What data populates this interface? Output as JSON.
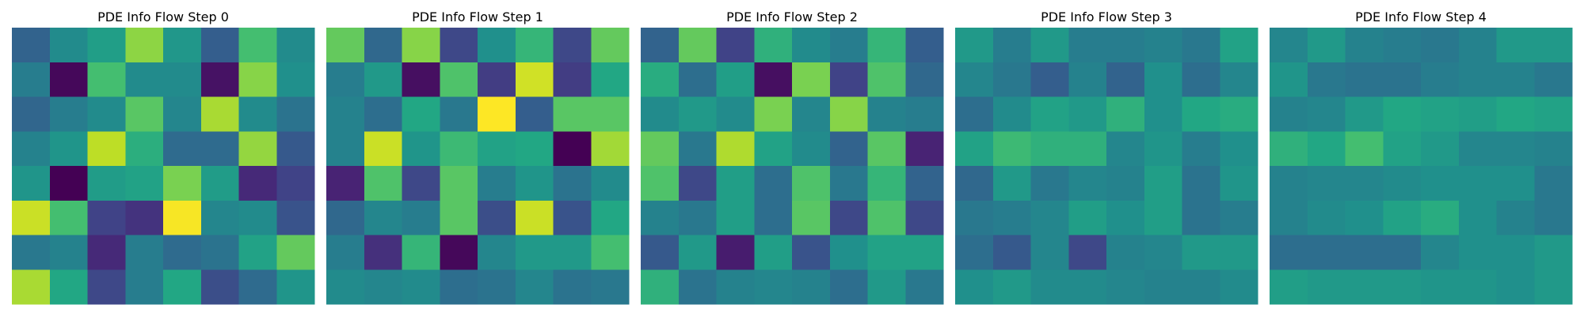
{
  "chart_data": [
    {
      "type": "heatmap",
      "title": "PDE Info Flow Step 0",
      "colormap": "viridis",
      "vmin": 0,
      "vmax": 1,
      "matrix": [
        [
          0.32,
          0.48,
          0.56,
          0.83,
          0.53,
          0.3,
          0.7,
          0.48
        ],
        [
          0.42,
          0.02,
          0.7,
          0.48,
          0.48,
          0.05,
          0.82,
          0.5
        ],
        [
          0.33,
          0.42,
          0.48,
          0.74,
          0.46,
          0.87,
          0.48,
          0.38
        ],
        [
          0.44,
          0.52,
          0.9,
          0.63,
          0.35,
          0.35,
          0.84,
          0.28
        ],
        [
          0.52,
          0.0,
          0.55,
          0.58,
          0.8,
          0.55,
          0.12,
          0.2
        ],
        [
          0.92,
          0.7,
          0.2,
          0.15,
          0.99,
          0.46,
          0.48,
          0.26
        ],
        [
          0.4,
          0.44,
          0.12,
          0.42,
          0.35,
          0.38,
          0.58,
          0.76
        ],
        [
          0.87,
          0.6,
          0.22,
          0.42,
          0.6,
          0.24,
          0.35,
          0.52
        ]
      ]
    },
    {
      "type": "heatmap",
      "title": "PDE Info Flow Step 1",
      "colormap": "viridis",
      "vmin": 0,
      "vmax": 1,
      "matrix": [
        [
          0.76,
          0.34,
          0.82,
          0.22,
          0.5,
          0.66,
          0.22,
          0.76
        ],
        [
          0.42,
          0.54,
          0.04,
          0.72,
          0.18,
          0.93,
          0.18,
          0.6
        ],
        [
          0.44,
          0.36,
          0.6,
          0.4,
          1.0,
          0.3,
          0.74,
          0.74
        ],
        [
          0.44,
          0.92,
          0.52,
          0.68,
          0.58,
          0.6,
          0.0,
          0.86
        ],
        [
          0.1,
          0.72,
          0.22,
          0.74,
          0.42,
          0.52,
          0.38,
          0.48
        ],
        [
          0.34,
          0.46,
          0.42,
          0.74,
          0.24,
          0.92,
          0.26,
          0.6
        ],
        [
          0.42,
          0.14,
          0.66,
          0.02,
          0.46,
          0.54,
          0.54,
          0.7
        ],
        [
          0.48,
          0.46,
          0.48,
          0.36,
          0.38,
          0.46,
          0.38,
          0.4
        ]
      ]
    },
    {
      "type": "heatmap",
      "title": "PDE Info Flow Step 2",
      "colormap": "viridis",
      "vmin": 0,
      "vmax": 1,
      "matrix": [
        [
          0.32,
          0.76,
          0.2,
          0.64,
          0.48,
          0.42,
          0.66,
          0.3
        ],
        [
          0.62,
          0.36,
          0.56,
          0.04,
          0.8,
          0.2,
          0.72,
          0.34
        ],
        [
          0.48,
          0.54,
          0.48,
          0.8,
          0.46,
          0.82,
          0.44,
          0.42
        ],
        [
          0.76,
          0.4,
          0.88,
          0.58,
          0.48,
          0.32,
          0.74,
          0.1
        ],
        [
          0.72,
          0.22,
          0.56,
          0.36,
          0.72,
          0.4,
          0.66,
          0.32
        ],
        [
          0.44,
          0.4,
          0.56,
          0.36,
          0.74,
          0.22,
          0.72,
          0.22
        ],
        [
          0.28,
          0.54,
          0.08,
          0.56,
          0.26,
          0.5,
          0.58,
          0.58
        ],
        [
          0.64,
          0.38,
          0.44,
          0.46,
          0.44,
          0.36,
          0.54,
          0.4
        ]
      ]
    },
    {
      "type": "heatmap",
      "title": "PDE Info Flow Step 3",
      "colormap": "viridis",
      "vmin": 0,
      "vmax": 1,
      "matrix": [
        [
          0.54,
          0.42,
          0.54,
          0.42,
          0.42,
          0.44,
          0.4,
          0.58
        ],
        [
          0.46,
          0.4,
          0.3,
          0.44,
          0.32,
          0.5,
          0.36,
          0.46
        ],
        [
          0.36,
          0.48,
          0.58,
          0.54,
          0.64,
          0.5,
          0.6,
          0.62
        ],
        [
          0.58,
          0.68,
          0.64,
          0.64,
          0.46,
          0.52,
          0.42,
          0.5
        ],
        [
          0.34,
          0.54,
          0.4,
          0.46,
          0.44,
          0.56,
          0.38,
          0.52
        ],
        [
          0.4,
          0.42,
          0.46,
          0.56,
          0.5,
          0.56,
          0.38,
          0.42
        ],
        [
          0.36,
          0.28,
          0.46,
          0.22,
          0.44,
          0.46,
          0.54,
          0.54
        ],
        [
          0.5,
          0.54,
          0.48,
          0.48,
          0.46,
          0.44,
          0.44,
          0.48
        ]
      ]
    },
    {
      "type": "heatmap",
      "title": "PDE Info Flow Step 4",
      "colormap": "viridis",
      "vmin": 0,
      "vmax": 1,
      "matrix": [
        [
          0.46,
          0.54,
          0.44,
          0.42,
          0.4,
          0.44,
          0.54,
          0.54
        ],
        [
          0.52,
          0.4,
          0.38,
          0.38,
          0.42,
          0.44,
          0.44,
          0.4
        ],
        [
          0.44,
          0.46,
          0.54,
          0.6,
          0.58,
          0.56,
          0.6,
          0.58
        ],
        [
          0.64,
          0.6,
          0.7,
          0.58,
          0.54,
          0.46,
          0.46,
          0.44
        ],
        [
          0.44,
          0.46,
          0.46,
          0.48,
          0.5,
          0.5,
          0.5,
          0.4
        ],
        [
          0.44,
          0.48,
          0.5,
          0.58,
          0.62,
          0.5,
          0.44,
          0.4
        ],
        [
          0.36,
          0.36,
          0.36,
          0.36,
          0.46,
          0.5,
          0.5,
          0.54
        ],
        [
          0.56,
          0.54,
          0.54,
          0.54,
          0.52,
          0.52,
          0.5,
          0.54
        ]
      ]
    }
  ]
}
